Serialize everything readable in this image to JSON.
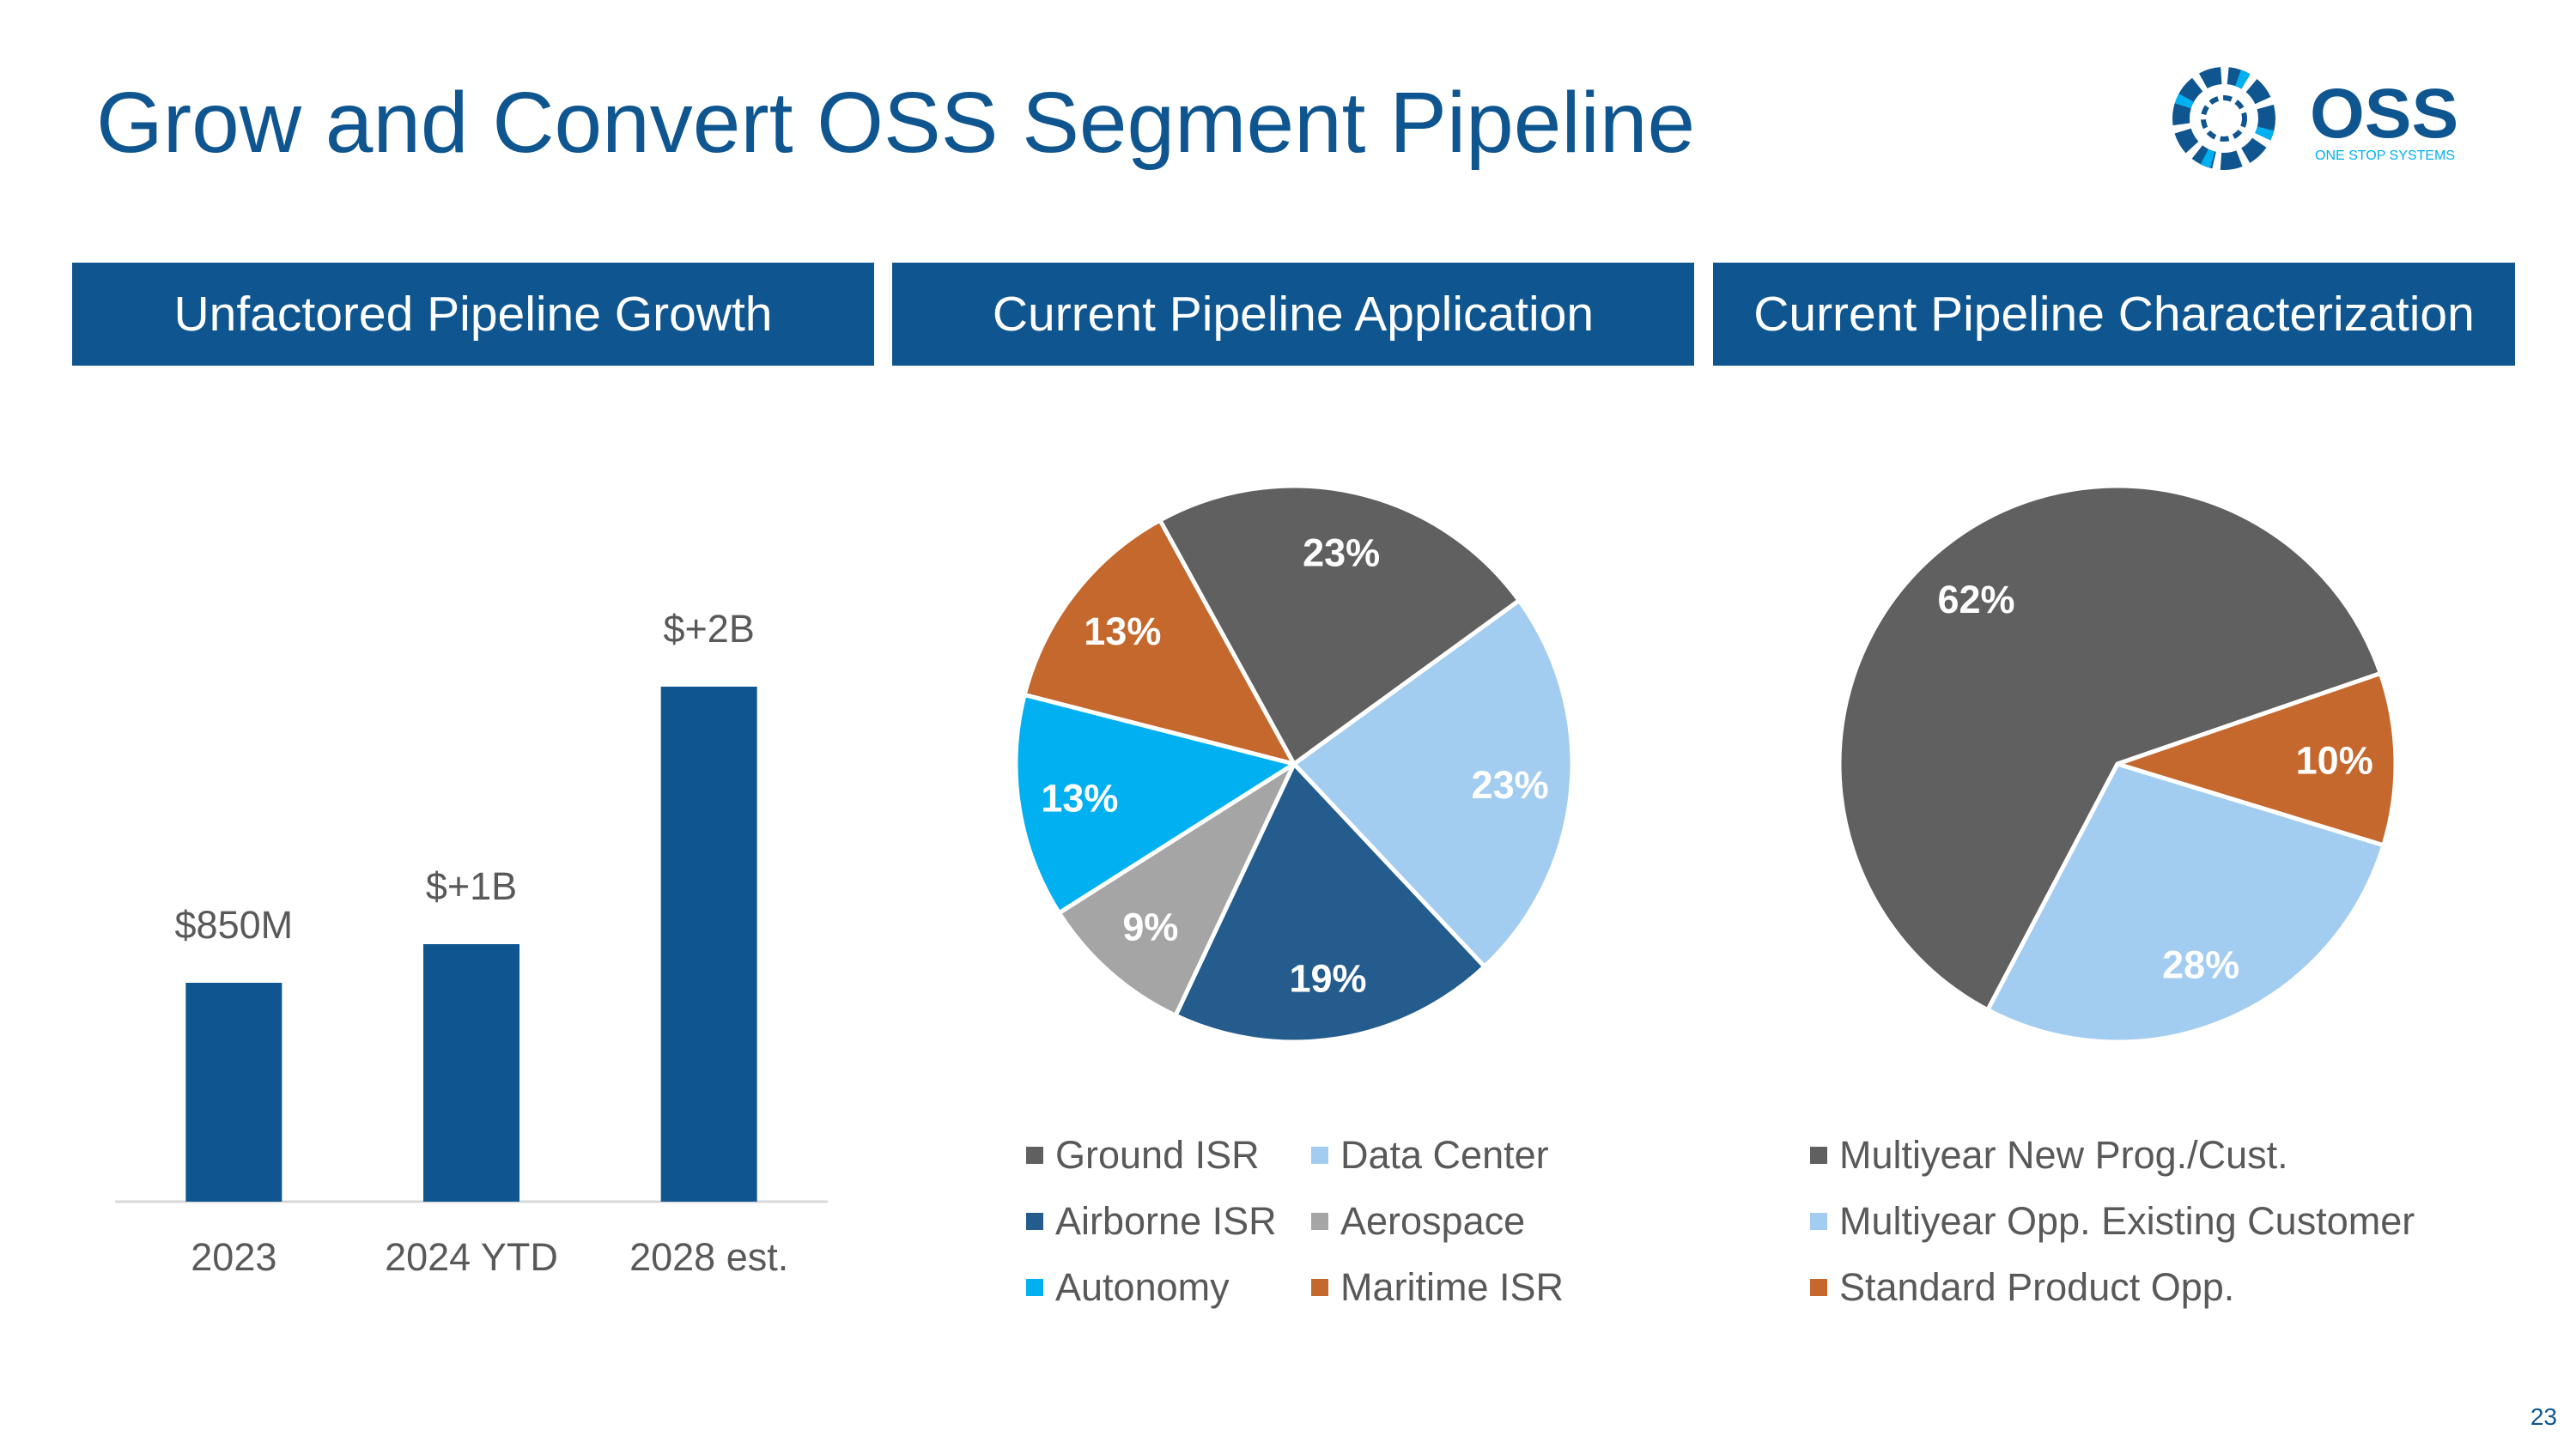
{
  "title": "Grow and Convert OSS Segment Pipeline",
  "logo": {
    "name": "OSS",
    "tagline": "ONE STOP SYSTEMS"
  },
  "banners": [
    "Unfactored Pipeline Growth",
    "Current Pipeline Application",
    "Current Pipeline Characterization"
  ],
  "page_number": "23",
  "colors": {
    "brand": "#0f5690",
    "axis_text": "#595959"
  },
  "chart_data": [
    {
      "type": "bar",
      "title": "Unfactored Pipeline Growth",
      "categories": [
        "2023",
        "2024 YTD",
        "2028 est."
      ],
      "values": [
        850,
        1000,
        2000
      ],
      "unit": "$M",
      "data_labels": [
        "$850M",
        "$+1B",
        "$+2B"
      ],
      "color": "#0f5690",
      "ylim": [
        0,
        2200
      ],
      "grid": false
    },
    {
      "type": "pie",
      "title": "Current Pipeline Application",
      "slices": [
        {
          "label": "Data Center",
          "value": 23,
          "display": "23%",
          "color": "#a3cdf0"
        },
        {
          "label": "Airborne ISR",
          "value": 19,
          "display": "19%",
          "color": "#245c8e"
        },
        {
          "label": "Aerospace",
          "value": 9,
          "display": "9%",
          "color": "#a5a5a5"
        },
        {
          "label": "Autonomy",
          "value": 13,
          "display": "13%",
          "color": "#00b0f0"
        },
        {
          "label": "Maritime ISR",
          "value": 13,
          "display": "13%",
          "color": "#c5682e"
        },
        {
          "label": "Ground ISR",
          "value": 23,
          "display": "23%",
          "color": "#606060"
        }
      ],
      "legend_order": [
        "Ground ISR",
        "Data Center",
        "Airborne ISR",
        "Aerospace",
        "Autonomy",
        "Maritime ISR"
      ],
      "legend_position": "bottom"
    },
    {
      "type": "pie",
      "title": "Current Pipeline Characterization",
      "slices": [
        {
          "label": "Multiyear New Prog./Cust.",
          "value": 62,
          "display": "62%",
          "color": "#606060"
        },
        {
          "label": "Multiyear Opp. Existing Customer",
          "value": 28,
          "display": "28%",
          "color": "#a3cdf0"
        },
        {
          "label": "Standard Product Opp.",
          "value": 10,
          "display": "10%",
          "color": "#c5682e"
        }
      ],
      "legend_order": [
        "Multiyear New Prog./Cust.",
        "Multiyear Opp. Existing Customer",
        "Standard Product Opp."
      ],
      "legend_position": "bottom"
    }
  ]
}
